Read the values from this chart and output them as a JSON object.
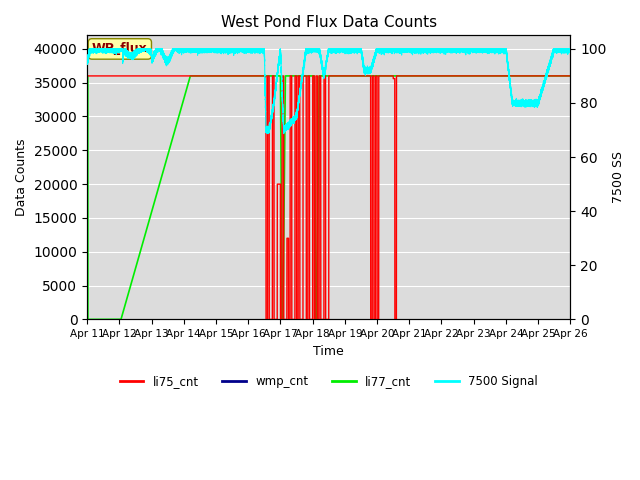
{
  "title": "West Pond Flux Data Counts",
  "xlabel": "Time",
  "ylabel_left": "Data Counts",
  "ylabel_right": "7500 SS",
  "ylim_left": [
    0,
    42000
  ],
  "ylim_right": [
    0,
    105
  ],
  "bg_color": "#dcdcdc",
  "annotation_text": "WP_flux",
  "annotation_box_color": "#ffffaa",
  "annotation_text_color": "#8b0000",
  "x_ticks": [
    "Apr 11",
    "Apr 12",
    "Apr 13",
    "Apr 14",
    "Apr 15",
    "Apr 16",
    "Apr 17",
    "Apr 18",
    "Apr 19",
    "Apr 20",
    "Apr 21",
    "Apr 22",
    "Apr 23",
    "Apr 24",
    "Apr 25",
    "Apr 26"
  ],
  "li75_color": "#ff0000",
  "wmp_color": "#00008b",
  "li77_color": "#00ee00",
  "signal7500_color": "#00ffff",
  "legend_entries": [
    "li75_cnt",
    "wmp_cnt",
    "li77_cnt",
    "7500 Signal"
  ],
  "yticks_left": [
    0,
    5000,
    10000,
    15000,
    20000,
    25000,
    30000,
    35000,
    40000
  ],
  "yticks_right": [
    0,
    20,
    40,
    60,
    80,
    100
  ]
}
